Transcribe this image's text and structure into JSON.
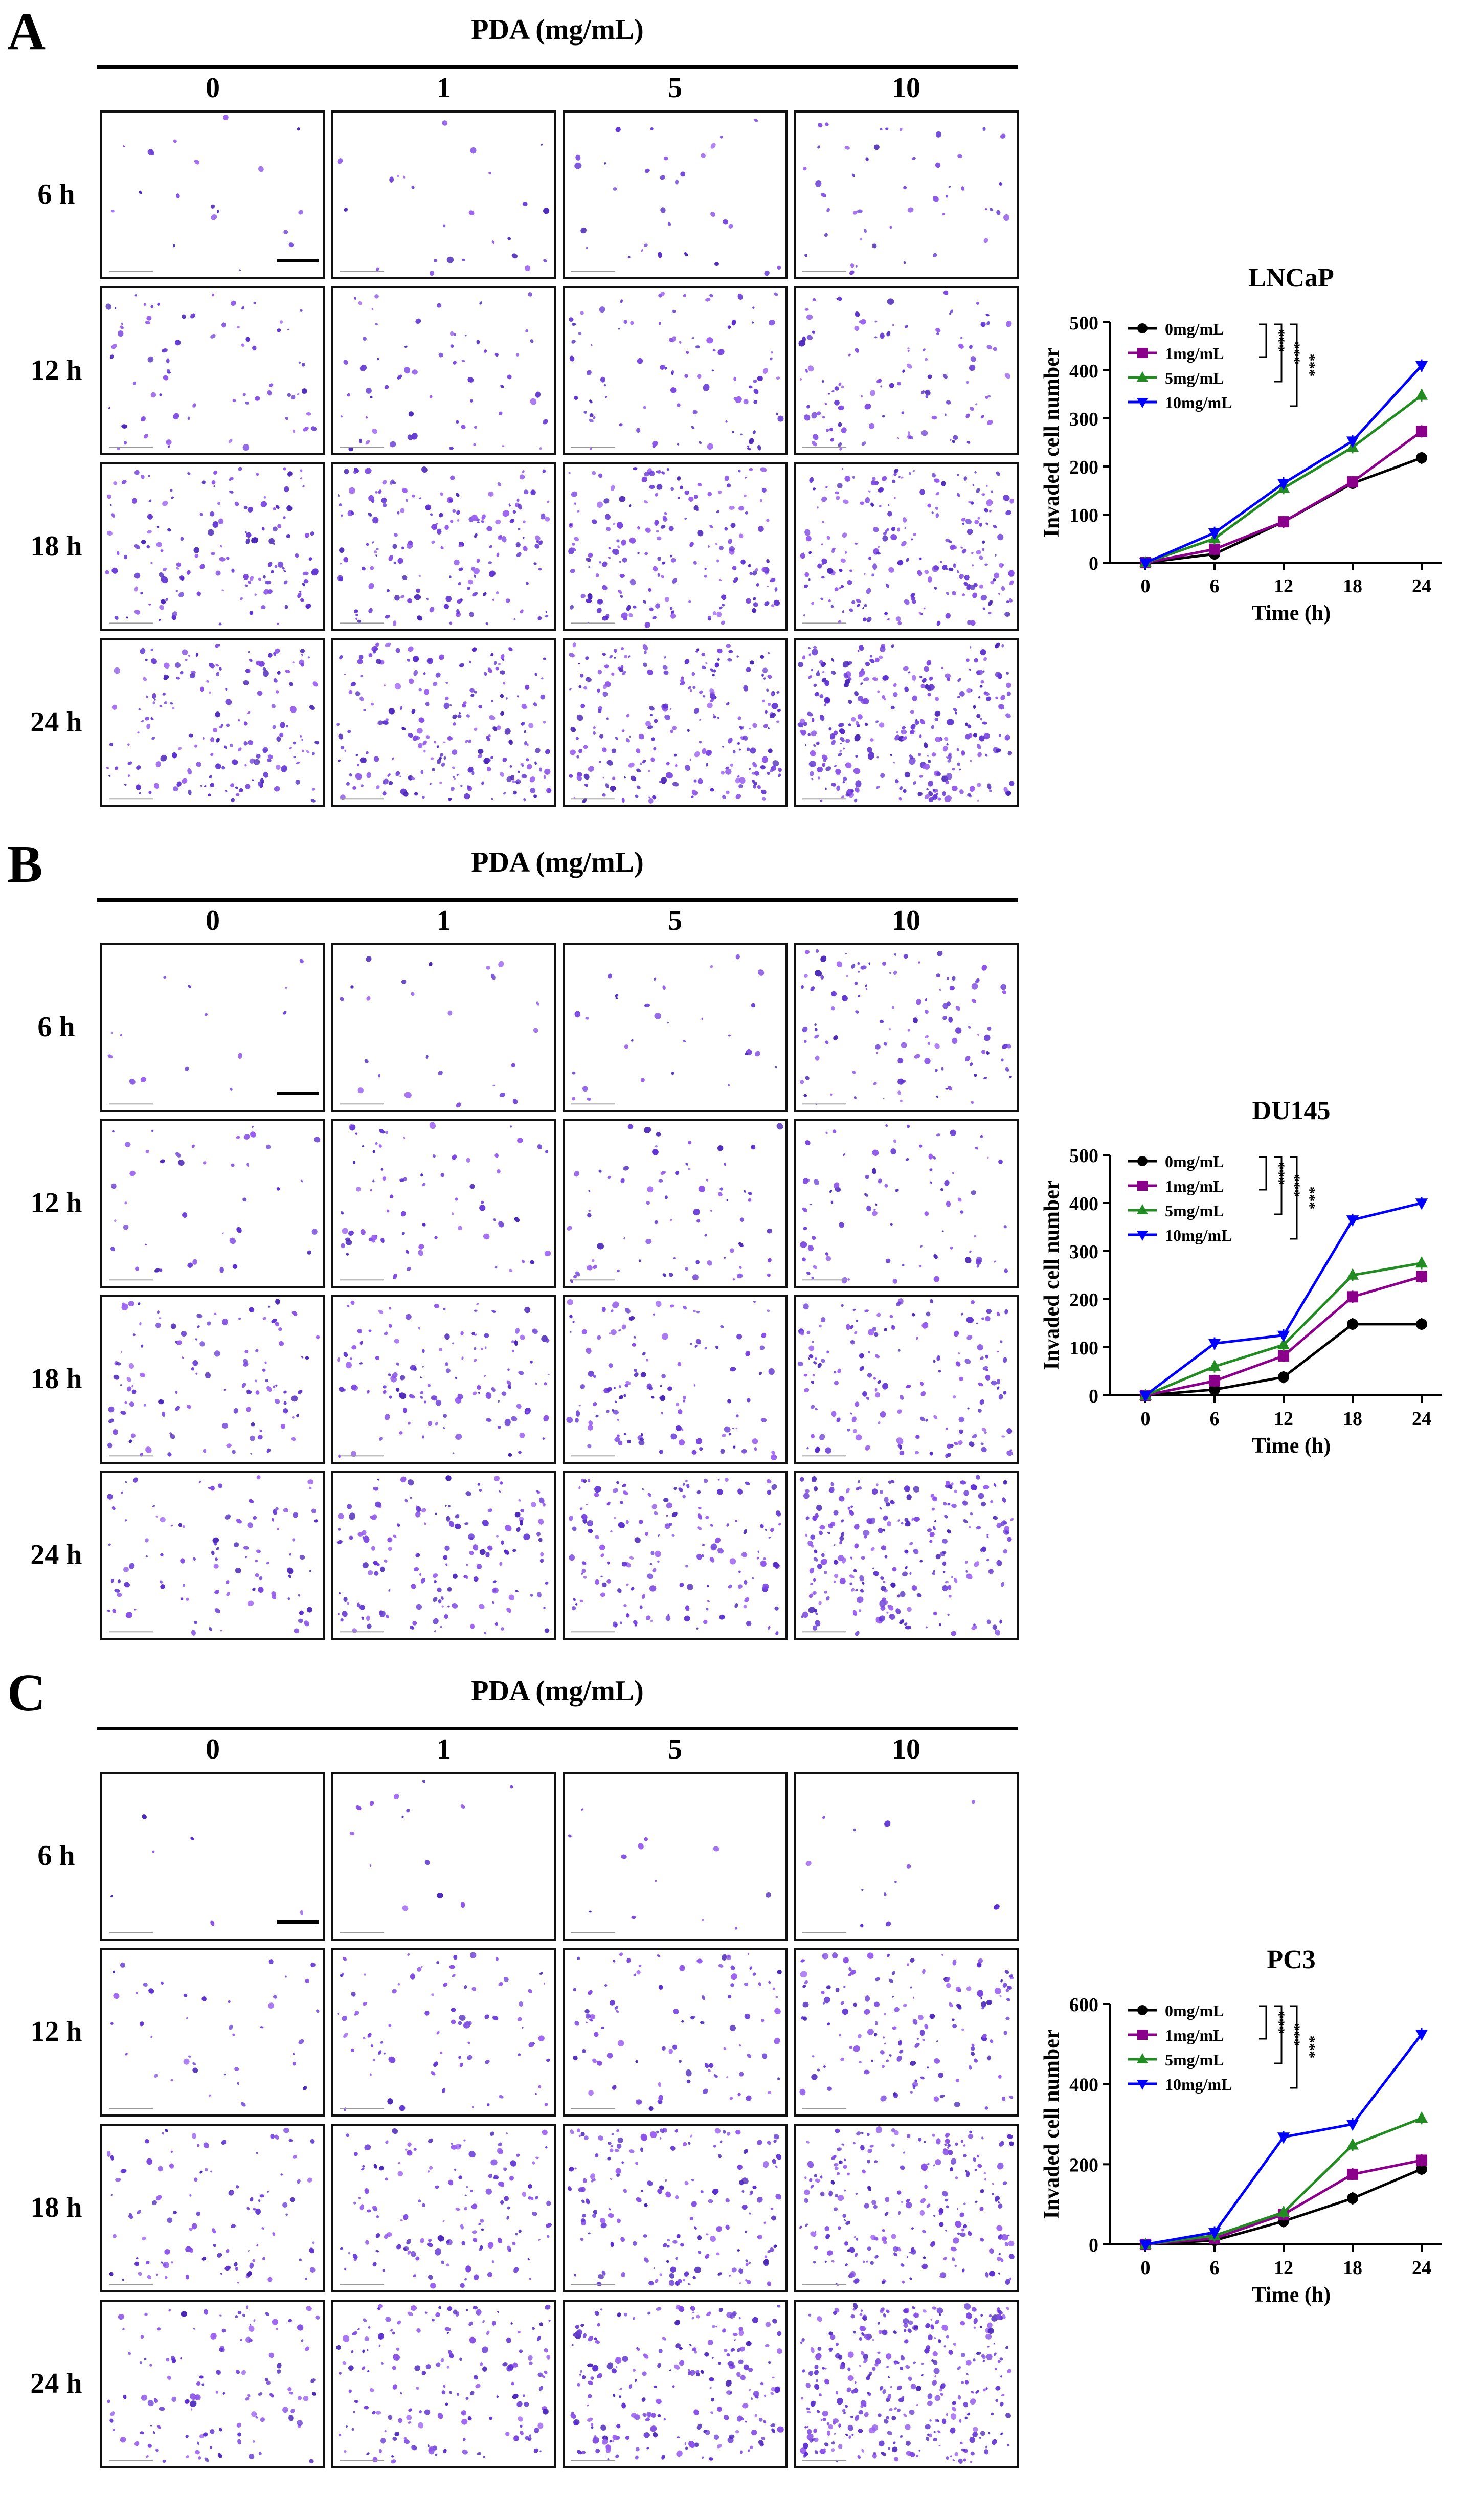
{
  "figure": {
    "header": "PDA (mg/mL)",
    "concentrations": [
      "0",
      "1",
      "5",
      "10"
    ],
    "times": [
      "6 h",
      "12 h",
      "18 h",
      "24 h"
    ]
  },
  "colors": {
    "series": [
      "#000000",
      "#8b008b",
      "#228b22",
      "#0000ff"
    ],
    "stain": "#6a3fd4"
  },
  "panels": [
    {
      "letter": "A",
      "density": [
        [
          20,
          24,
          30,
          46
        ],
        [
          70,
          60,
          90,
          110
        ],
        [
          140,
          165,
          180,
          210
        ],
        [
          165,
          210,
          230,
          290
        ]
      ],
      "chart_data": {
        "type": "line",
        "title": "LNCaP",
        "xlabel": "Time (h)",
        "ylabel": "Invaded cell number",
        "x": [
          0,
          6,
          12,
          18,
          24
        ],
        "xticks": [
          0,
          6,
          12,
          18,
          24
        ],
        "ylim": [
          0,
          500
        ],
        "yticks": [
          0,
          100,
          200,
          300,
          400,
          500
        ],
        "legend_position": "top-left",
        "significance": [
          "***",
          "***",
          "***"
        ],
        "series": [
          {
            "name": "0mg/mL",
            "marker": "circle",
            "values": [
              0,
              18,
              85,
              165,
              218
            ]
          },
          {
            "name": "1mg/mL",
            "marker": "square",
            "values": [
              0,
              28,
              85,
              168,
              273
            ]
          },
          {
            "name": "5mg/mL",
            "marker": "triangle-up",
            "values": [
              0,
              50,
              155,
              240,
              348
            ]
          },
          {
            "name": "10mg/mL",
            "marker": "triangle-down",
            "values": [
              0,
              62,
              165,
              253,
              410
            ]
          }
        ]
      }
    },
    {
      "letter": "B",
      "density": [
        [
          14,
          24,
          30,
          110
        ],
        [
          40,
          70,
          70,
          80
        ],
        [
          110,
          120,
          120,
          150
        ],
        [
          95,
          150,
          160,
          230
        ]
      ],
      "chart_data": {
        "type": "line",
        "title": "DU145",
        "xlabel": "Time (h)",
        "ylabel": "Invaded cell number",
        "x": [
          0,
          6,
          12,
          18,
          24
        ],
        "xticks": [
          0,
          6,
          12,
          18,
          24
        ],
        "ylim": [
          0,
          500
        ],
        "yticks": [
          0,
          100,
          200,
          300,
          400,
          500
        ],
        "legend_position": "top-left",
        "significance": [
          "***",
          "***",
          "***"
        ],
        "series": [
          {
            "name": "0mg/mL",
            "marker": "circle",
            "values": [
              0,
              12,
              38,
              148,
              148
            ]
          },
          {
            "name": "1mg/mL",
            "marker": "square",
            "values": [
              0,
              30,
              82,
              205,
              247
            ]
          },
          {
            "name": "5mg/mL",
            "marker": "triangle-up",
            "values": [
              0,
              60,
              105,
              250,
              275
            ]
          },
          {
            "name": "10mg/mL",
            "marker": "triangle-down",
            "values": [
              0,
              108,
              125,
              365,
              400
            ]
          }
        ]
      }
    },
    {
      "letter": "C",
      "density": [
        [
          6,
          14,
          12,
          12
        ],
        [
          40,
          80,
          90,
          140
        ],
        [
          100,
          140,
          170,
          210
        ],
        [
          120,
          160,
          210,
          320
        ]
      ],
      "chart_data": {
        "type": "line",
        "title": "PC3",
        "xlabel": "Time (h)",
        "ylabel": "Invaded cell number",
        "x": [
          0,
          6,
          12,
          18,
          24
        ],
        "xticks": [
          0,
          6,
          12,
          18,
          24
        ],
        "ylim": [
          0,
          600
        ],
        "yticks": [
          0,
          200,
          400,
          600
        ],
        "legend_position": "top-left",
        "significance": [
          "***",
          "***",
          "***"
        ],
        "series": [
          {
            "name": "0mg/mL",
            "marker": "circle",
            "values": [
              0,
              10,
              58,
              115,
              188
            ]
          },
          {
            "name": "1mg/mL",
            "marker": "square",
            "values": [
              0,
              15,
              75,
              175,
              210
            ]
          },
          {
            "name": "5mg/mL",
            "marker": "triangle-up",
            "values": [
              0,
              22,
              80,
              248,
              315
            ]
          },
          {
            "name": "10mg/mL",
            "marker": "triangle-down",
            "values": [
              0,
              30,
              268,
              300,
              525
            ]
          }
        ]
      }
    }
  ]
}
